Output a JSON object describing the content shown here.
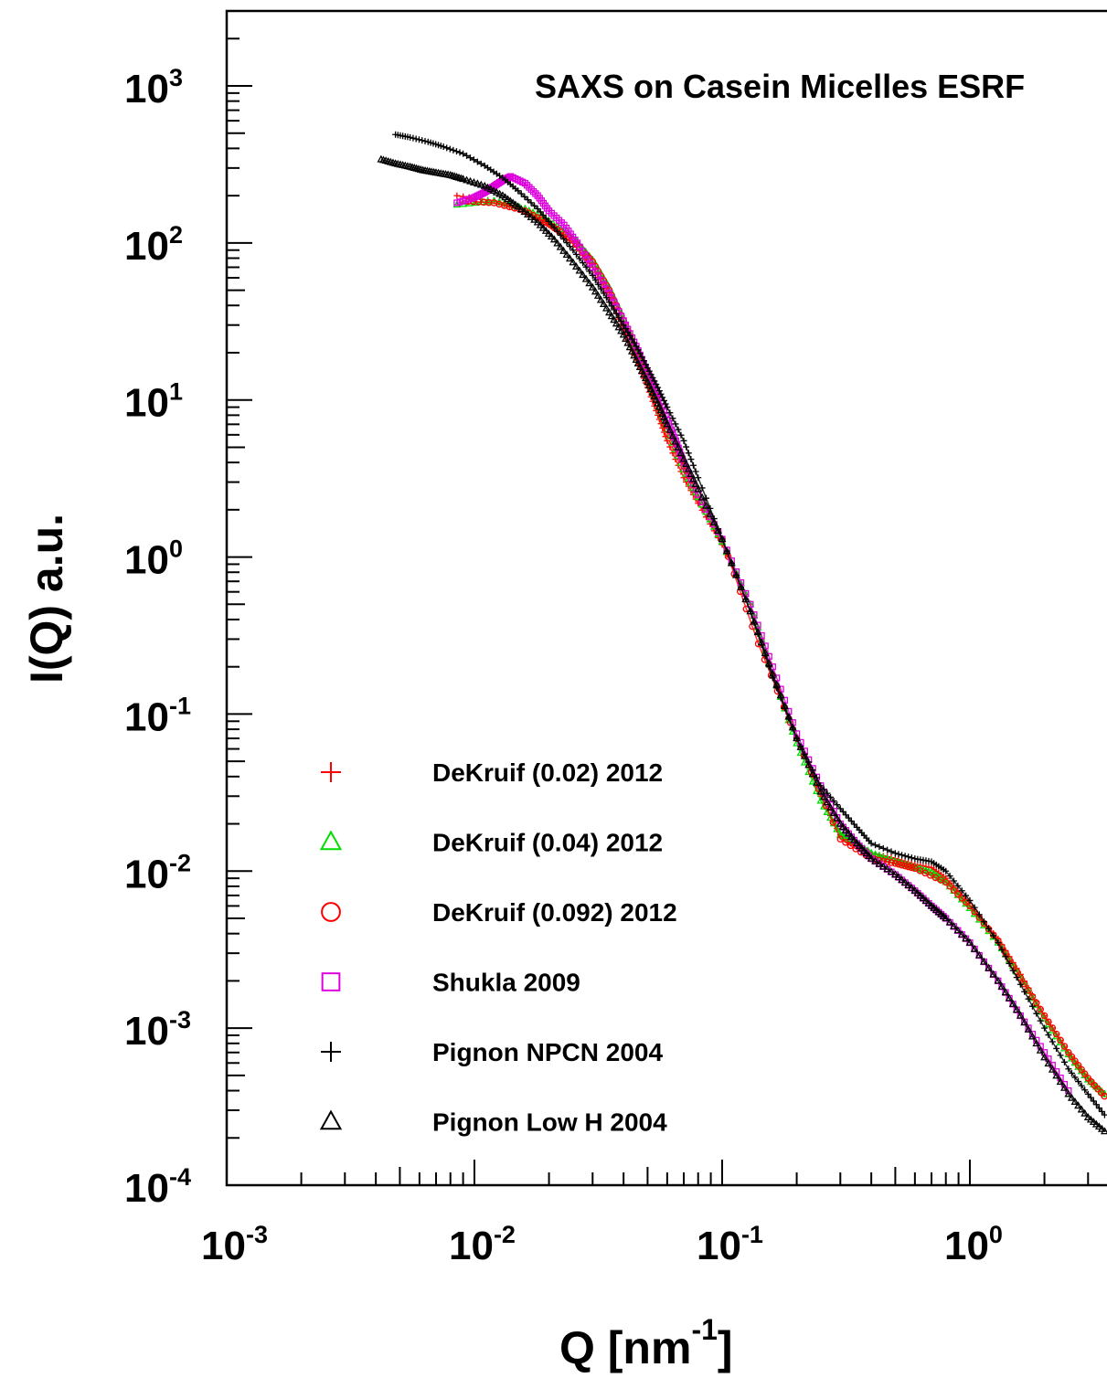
{
  "chart_data": {
    "type": "scatter",
    "title": "SAXS on Casein Micelles ESRF",
    "xlabel": "Q [nm",
    "xlabel_sup": "-1",
    "xlabel_end": "]",
    "ylabel": "I(Q) a.u.",
    "x_scale": "log",
    "y_scale": "log",
    "xlim": [
      0.001,
      4.5
    ],
    "ylim": [
      0.0001,
      3000
    ],
    "grid": false,
    "legend_position": "bottom-left",
    "x_ticks": [
      {
        "base": "10",
        "exp": "-3"
      },
      {
        "base": "10",
        "exp": "-2"
      },
      {
        "base": "10",
        "exp": "-1"
      },
      {
        "base": "10",
        "exp": "0"
      }
    ],
    "y_ticks": [
      {
        "base": "10",
        "exp": "-4"
      },
      {
        "base": "10",
        "exp": "-3"
      },
      {
        "base": "10",
        "exp": "-2"
      },
      {
        "base": "10",
        "exp": "-1"
      },
      {
        "base": "10",
        "exp": "0"
      },
      {
        "base": "10",
        "exp": "1"
      },
      {
        "base": "10",
        "exp": "2"
      },
      {
        "base": "10",
        "exp": "3"
      }
    ],
    "series": [
      {
        "name": "DeKruif (0.02) 2012",
        "color": "#ff0000",
        "marker": "plus",
        "x": [
          0.0085,
          0.012,
          0.016,
          0.02,
          0.025,
          0.03,
          0.035,
          0.04,
          0.045,
          0.05,
          0.055,
          0.06,
          0.07,
          0.08,
          0.1,
          0.13,
          0.16,
          0.2,
          0.25,
          0.3,
          0.33,
          0.4,
          0.5,
          0.6,
          0.7,
          0.8,
          1.0,
          1.3,
          1.6,
          2.0,
          2.5,
          3.0,
          3.5,
          4.2
        ],
        "y": [
          200,
          185,
          160,
          130,
          100,
          70,
          45,
          28,
          18,
          12,
          8,
          5.5,
          3.2,
          2.2,
          1.2,
          0.5,
          0.18,
          0.07,
          0.03,
          0.017,
          0.015,
          0.013,
          0.012,
          0.011,
          0.0105,
          0.009,
          0.006,
          0.0037,
          0.0022,
          0.0012,
          0.0007,
          0.00048,
          0.00038,
          0.0003
        ]
      },
      {
        "name": "DeKruif (0.04) 2012",
        "color": "#00dd00",
        "marker": "triangle",
        "x": [
          0.0085,
          0.012,
          0.016,
          0.02,
          0.025,
          0.03,
          0.035,
          0.04,
          0.045,
          0.05,
          0.055,
          0.06,
          0.07,
          0.08,
          0.1,
          0.13,
          0.16,
          0.2,
          0.25,
          0.3,
          0.33,
          0.4,
          0.5,
          0.6,
          0.7,
          0.8,
          1.0,
          1.3,
          1.6,
          2.0,
          2.5,
          3.0,
          3.5,
          4.2
        ],
        "y": [
          175,
          185,
          165,
          138,
          108,
          78,
          52,
          33,
          21,
          14,
          9.5,
          6.5,
          3.6,
          2.4,
          1.25,
          0.5,
          0.18,
          0.065,
          0.028,
          0.017,
          0.016,
          0.013,
          0.0115,
          0.0105,
          0.0098,
          0.0085,
          0.0058,
          0.0035,
          0.0021,
          0.00115,
          0.00068,
          0.00047,
          0.00038,
          0.00032
        ]
      },
      {
        "name": "DeKruif (0.092) 2012",
        "color": "#ff0000",
        "marker": "circle",
        "x": [
          0.009,
          0.012,
          0.016,
          0.02,
          0.025,
          0.03,
          0.035,
          0.04,
          0.045,
          0.05,
          0.055,
          0.06,
          0.07,
          0.08,
          0.1,
          0.14,
          0.2,
          0.3,
          0.4,
          0.5,
          0.6,
          0.8,
          1.0,
          1.3,
          1.6,
          2.0,
          2.5,
          3.0,
          3.6,
          4.2
        ],
        "y": [
          185,
          180,
          160,
          132,
          104,
          76,
          50,
          32,
          20,
          14,
          9.5,
          6.5,
          3.8,
          2.5,
          1.3,
          0.28,
          0.07,
          0.016,
          0.012,
          0.0112,
          0.0104,
          0.0085,
          0.006,
          0.0036,
          0.0021,
          0.0012,
          0.0007,
          0.00048,
          0.00035,
          0.0003
        ]
      },
      {
        "name": "Shukla 2009",
        "color": "#dd00dd",
        "marker": "square",
        "x": [
          0.0085,
          0.01,
          0.011,
          0.012,
          0.013,
          0.014,
          0.016,
          0.018,
          0.02,
          0.023,
          0.026,
          0.03,
          0.035,
          0.04,
          0.045,
          0.05,
          0.055,
          0.06,
          0.065,
          0.07,
          0.08,
          0.1,
          0.13,
          0.16,
          0.2,
          0.25,
          0.3,
          0.35,
          0.4,
          0.5,
          0.6,
          0.7,
          0.8,
          1.0,
          1.3,
          1.6,
          2.0,
          2.5
        ],
        "y": [
          180,
          195,
          210,
          230,
          250,
          265,
          240,
          200,
          160,
          130,
          100,
          70,
          48,
          32,
          22,
          15,
          11,
          7.5,
          5.5,
          4,
          2.5,
          1.3,
          0.5,
          0.2,
          0.075,
          0.035,
          0.02,
          0.015,
          0.012,
          0.0095,
          0.0075,
          0.006,
          0.005,
          0.0035,
          0.002,
          0.0012,
          0.0007,
          0.0004
        ]
      },
      {
        "name": "Pignon NPCN 2004",
        "color": "#000000",
        "marker": "plus",
        "x": [
          0.0048,
          0.0055,
          0.0065,
          0.0075,
          0.009,
          0.011,
          0.013,
          0.015,
          0.018,
          0.021,
          0.025,
          0.03,
          0.035,
          0.04,
          0.045,
          0.05,
          0.055,
          0.06,
          0.07,
          0.08,
          0.1,
          0.13,
          0.16,
          0.2,
          0.25,
          0.3,
          0.35,
          0.4,
          0.5,
          0.6,
          0.7,
          0.8,
          1.0,
          1.3,
          1.6,
          2.0,
          2.5,
          3.0,
          3.5,
          4.2
        ],
        "y": [
          490,
          470,
          440,
          410,
          370,
          310,
          260,
          215,
          165,
          125,
          90,
          62,
          42,
          30,
          22,
          16,
          12,
          9,
          5.5,
          3.2,
          1.3,
          0.45,
          0.17,
          0.07,
          0.035,
          0.025,
          0.019,
          0.015,
          0.013,
          0.012,
          0.0115,
          0.01,
          0.0065,
          0.0035,
          0.0019,
          0.001,
          0.00055,
          0.00038,
          0.00028,
          0.00022
        ]
      },
      {
        "name": "Pignon Low H 2004",
        "color": "#000000",
        "marker": "triangle",
        "x": [
          0.0042,
          0.0048,
          0.0055,
          0.0062,
          0.007,
          0.008,
          0.009,
          0.011,
          0.013,
          0.015,
          0.018,
          0.021,
          0.025,
          0.03,
          0.035,
          0.04,
          0.045,
          0.05,
          0.055,
          0.06,
          0.07,
          0.08,
          0.1,
          0.13,
          0.16,
          0.2,
          0.25,
          0.3,
          0.35,
          0.4,
          0.5,
          0.6,
          0.7,
          0.8,
          1.0,
          1.3,
          1.6,
          2.0,
          2.5,
          3.0,
          3.5,
          4.2
        ],
        "y": [
          340,
          320,
          305,
          290,
          280,
          270,
          255,
          230,
          200,
          170,
          135,
          105,
          75,
          52,
          36,
          26,
          18,
          13,
          9.5,
          7,
          4.2,
          2.7,
          1.3,
          0.45,
          0.18,
          0.07,
          0.032,
          0.02,
          0.015,
          0.012,
          0.0095,
          0.0075,
          0.006,
          0.005,
          0.0035,
          0.002,
          0.0012,
          0.00065,
          0.00038,
          0.00027,
          0.00022,
          0.00019
        ]
      }
    ]
  }
}
